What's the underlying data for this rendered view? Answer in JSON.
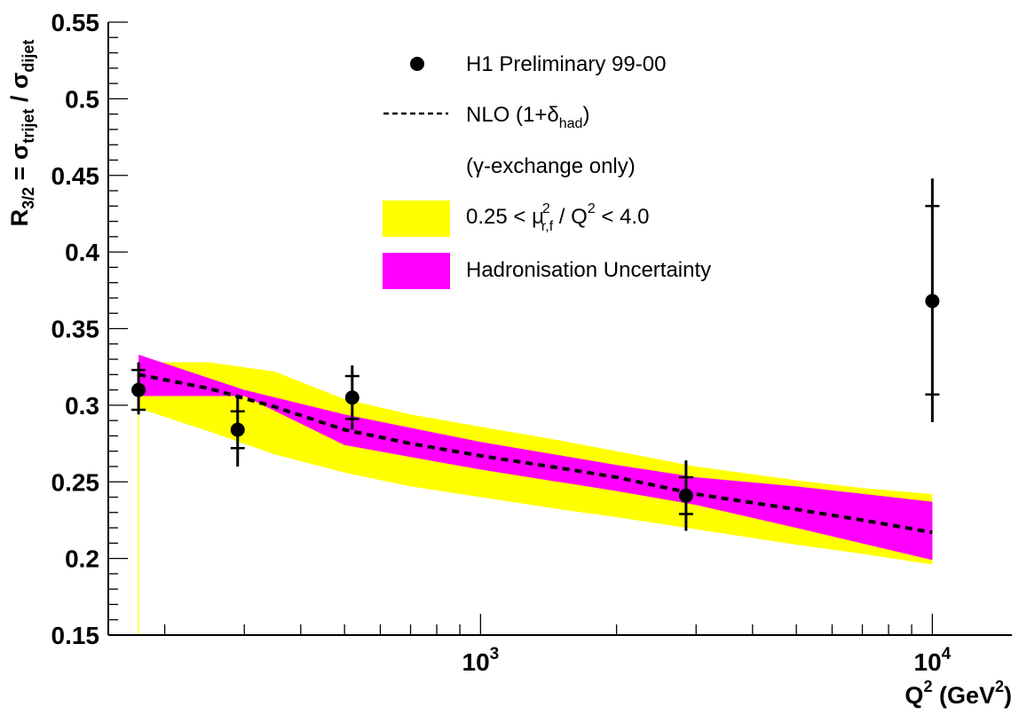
{
  "chart_data": {
    "type": "line",
    "x_scale": "log",
    "xlim": [
      150,
      15000
    ],
    "ylim": [
      0.15,
      0.55
    ],
    "yticks": [
      "0.15",
      "0.2",
      "0.25",
      "0.3",
      "0.35",
      "0.4",
      "0.45",
      "0.5",
      "0.55"
    ],
    "xticks": [
      {
        "base": "10",
        "exp": "3",
        "value": 1000
      },
      {
        "base": "10",
        "exp": "4",
        "value": 10000
      }
    ],
    "xlabel": {
      "main": "Q",
      "sup": "2",
      "unit": " (GeV",
      "unit_sup": "2",
      "close": ")"
    },
    "ylabel": {
      "r": "R",
      "r_sub": "3/2",
      "eq": " = σ",
      "num_sub": "trijet",
      "slash": " / σ",
      "den_sub": "dijet"
    },
    "series": [
      {
        "name": "H1 Preliminary 99-00",
        "kind": "points",
        "color": "#000000",
        "points": [
          {
            "x": 175,
            "y": 0.31,
            "stat": [
              0.297,
              0.323
            ],
            "tot": [
              0.294,
              0.328
            ]
          },
          {
            "x": 290,
            "y": 0.284,
            "stat": [
              0.272,
              0.296
            ],
            "tot": [
              0.26,
              0.307
            ]
          },
          {
            "x": 520,
            "y": 0.305,
            "stat": [
              0.291,
              0.319
            ],
            "tot": [
              0.284,
              0.326
            ]
          },
          {
            "x": 2850,
            "y": 0.241,
            "stat": [
              0.229,
              0.253
            ],
            "tot": [
              0.218,
              0.264
            ]
          },
          {
            "x": 10000,
            "y": 0.368,
            "stat": [
              0.307,
              0.43
            ],
            "tot": [
              0.289,
              0.448
            ]
          }
        ]
      },
      {
        "name": "NLO (1+δ",
        "name_sub": "had",
        "name_close": ")",
        "kind": "dashed-line",
        "color": "#000000",
        "x": [
          175,
          250,
          350,
          500,
          700,
          1000,
          1500,
          2000,
          3000,
          5000,
          7000,
          10000
        ],
        "y": [
          0.32,
          0.311,
          0.299,
          0.284,
          0.275,
          0.267,
          0.259,
          0.253,
          0.242,
          0.232,
          0.225,
          0.217
        ]
      },
      {
        "name": "(γ-exchange only)",
        "kind": "legend-note"
      },
      {
        "name": "0.25 < μ",
        "name_sup": "2",
        "name_sub": "r,f",
        "name_tail": " / Q",
        "name_tail_sup": "2",
        "name_end": " < 4.0",
        "kind": "band",
        "color": "#ffff00",
        "x": [
          175,
          250,
          350,
          500,
          700,
          1000,
          1500,
          2000,
          3000,
          5000,
          7000,
          10000
        ],
        "upper": [
          0.328,
          0.328,
          0.322,
          0.304,
          0.294,
          0.286,
          0.277,
          0.27,
          0.26,
          0.251,
          0.246,
          0.242
        ],
        "lower": [
          0.298,
          0.283,
          0.268,
          0.256,
          0.247,
          0.24,
          0.232,
          0.227,
          0.219,
          0.209,
          0.203,
          0.196
        ]
      },
      {
        "name": "Hadronisation Uncertainty",
        "kind": "band",
        "color": "#ff00ff",
        "x": [
          175,
          300,
          500,
          1000,
          2000,
          3000,
          5000,
          10000
        ],
        "upper": [
          0.333,
          0.31,
          0.294,
          0.276,
          0.261,
          0.253,
          0.247,
          0.237
        ],
        "lower": [
          0.306,
          0.306,
          0.274,
          0.258,
          0.244,
          0.235,
          0.22,
          0.199
        ]
      }
    ],
    "legend": {
      "position": "top-center"
    }
  }
}
